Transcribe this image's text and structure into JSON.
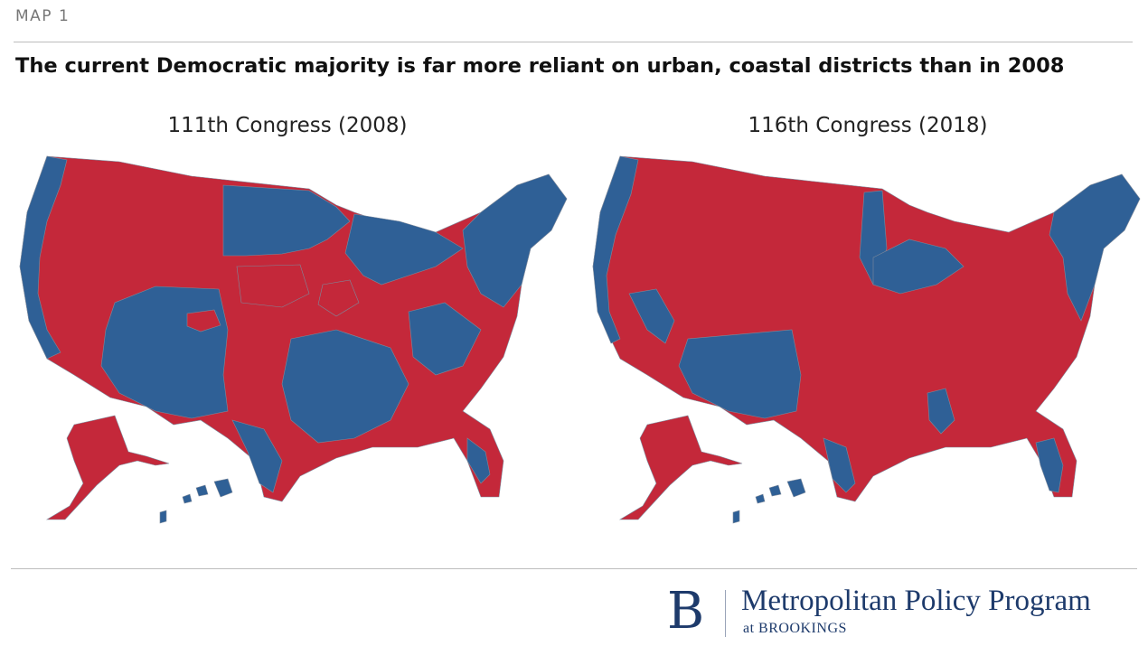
{
  "header": {
    "kicker": "MAP 1",
    "title": "The current Democratic majority is far more reliant on urban, coastal districts than in 2008"
  },
  "maps": [
    {
      "title": "111th Congress (2008)"
    },
    {
      "title": "116th Congress (2018)"
    }
  ],
  "colors": {
    "democrat": "#2f6096",
    "republican": "#c4283a",
    "border": "#7d8a9c"
  },
  "footer": {
    "logo_letter": "B",
    "org_name": "Metropolitan Policy Program",
    "org_sub": "at BROOKINGS"
  }
}
